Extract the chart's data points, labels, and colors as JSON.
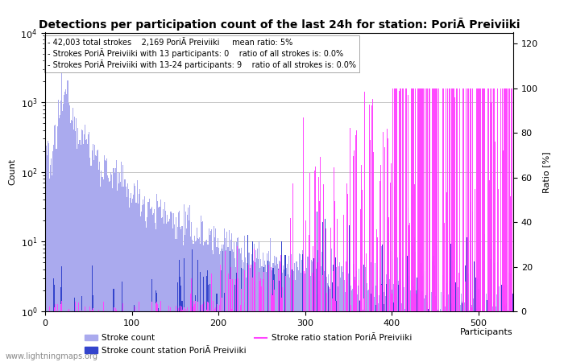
{
  "title": "Detections per participation count of the last 24h for station: PoriÃ Preiviiki",
  "xlabel": "Participants",
  "ylabel_left": "Count",
  "ylabel_right": "Ratio [%]",
  "annotation_lines": [
    "42,003 total strokes    2,169 PoriÃ Preiviiki     mean ratio: 5%",
    "Strokes PoriÃ Preiviiki with 13 participants: 0    ratio of all strokes is: 0.0%",
    "Strokes PoriÃ Preiviiki with 13-24 participants: 9    ratio of all strokes is: 0.0%"
  ],
  "xlim": [
    0,
    540
  ],
  "ylim_left": [
    1,
    10000
  ],
  "ylim_right": [
    0,
    125
  ],
  "bar_color_all": "#aaaaee",
  "bar_color_station": "#3344cc",
  "line_color_ratio": "#ff44ff",
  "watermark": "www.lightningmaps.org",
  "legend_entries": [
    "Stroke count",
    "Stroke count station PoriÃ Preiviiki",
    "Stroke ratio station PoriÃ Preiviiki"
  ],
  "grid_color": "#bbbbbb",
  "background_color": "#ffffff",
  "title_fontsize": 10,
  "axis_fontsize": 8,
  "annotation_fontsize": 7
}
